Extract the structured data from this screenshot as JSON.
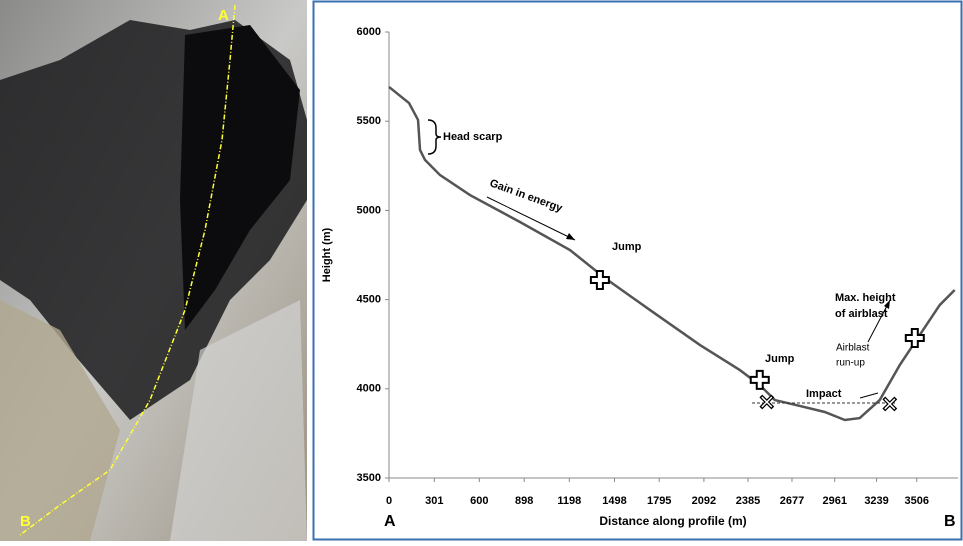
{
  "image": {
    "label_top": "A",
    "label_bottom": "B"
  },
  "chart_data": {
    "type": "line",
    "ylabel": "Height (m)",
    "xlabel": "Distance along profile (m)",
    "end_left": "A",
    "end_right": "B",
    "x": [
      0,
      133,
      193,
      206,
      239,
      339,
      538,
      870,
      1202,
      1434,
      1733,
      2065,
      2331,
      2463,
      2563,
      2729,
      2895,
      3028,
      3127,
      3260,
      3393,
      3526,
      3659,
      3758
    ],
    "series": [
      {
        "color": "#555555",
        "values": [
          5692,
          5602,
          5507,
          5339,
          5283,
          5198,
          5086,
          4935,
          4778,
          4621,
          4442,
          4246,
          4105,
          4021,
          3937,
          3904,
          3870,
          3825,
          3836,
          3937,
          4133,
          4302,
          4470,
          4554
        ]
      }
    ],
    "xlim": [
      0,
      3780
    ],
    "ylim": [
      3500,
      6000
    ],
    "xticks": [
      0,
      301,
      600,
      898,
      1198,
      1498,
      1795,
      2092,
      2385,
      2677,
      2961,
      3239,
      3506
    ],
    "yticks": [
      3500,
      4000,
      4500,
      5000,
      5500,
      6000
    ],
    "jumps": {
      "x": [
        1401,
        2463,
        3493
      ],
      "y": [
        4610,
        4050,
        4285
      ]
    },
    "impacts": {
      "x": [
        2510,
        3327
      ],
      "y": [
        3926,
        3915
      ]
    },
    "annotations": [
      "Head scarp",
      "Gain in energy",
      "Jump",
      "Jump",
      "Max. height",
      "of airblast",
      "Airblast",
      "run-up",
      "Impact"
    ]
  }
}
